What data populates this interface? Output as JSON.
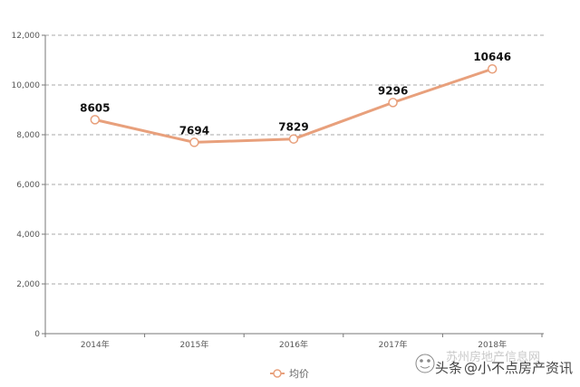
{
  "chart_data": {
    "type": "line",
    "categories": [
      "2014年",
      "2015年",
      "2016年",
      "2017年",
      "2018年"
    ],
    "series": [
      {
        "name": "均价",
        "values": [
          8605,
          7694,
          7829,
          9296,
          10646
        ],
        "data_labels": [
          "8605",
          "7694",
          "7829",
          "9296",
          "10646"
        ]
      }
    ],
    "ylim": [
      0,
      12000
    ],
    "y_ticks": [
      0,
      2000,
      4000,
      6000,
      8000,
      10000,
      12000
    ],
    "y_tick_labels": [
      "0",
      "2,000",
      "4,000",
      "6,000",
      "8,000",
      "10,000",
      "12,000"
    ],
    "grid": true,
    "grid_style": "dashed horizontal",
    "legend": "bottom-center",
    "title": "",
    "xlabel": "",
    "ylabel": ""
  },
  "colors": {
    "line": "#E8A07C",
    "marker_fill": "#ffffff",
    "grid": "#a9a9a9",
    "axis": "#777777"
  },
  "watermark": {
    "brand": "头条",
    "handle": "@小不点房产资讯",
    "faint_text": "苏州房地产信息网"
  }
}
